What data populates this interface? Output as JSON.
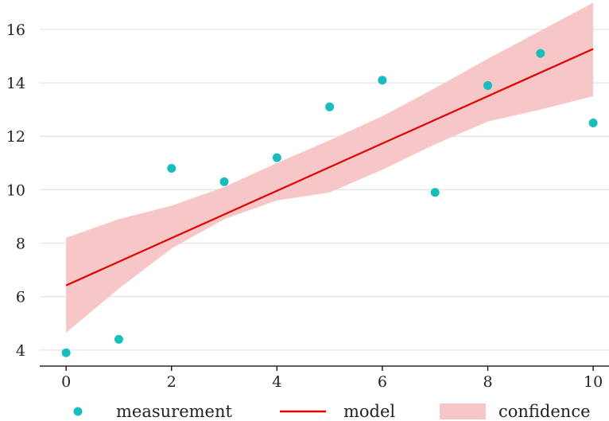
{
  "chart_data": {
    "type": "scatter",
    "title": "",
    "xlabel": "",
    "ylabel": "",
    "xlim": [
      -0.5,
      10.3
    ],
    "ylim": [
      3.4,
      17.1
    ],
    "x_ticks": [
      0,
      2,
      4,
      6,
      8,
      10
    ],
    "x_tick_labels": [
      "0",
      "2",
      "4",
      "6",
      "8",
      "10"
    ],
    "y_ticks": [
      4,
      6,
      8,
      10,
      12,
      14,
      16
    ],
    "y_tick_labels": [
      "4",
      "6",
      "8",
      "10",
      "12",
      "14",
      "16"
    ],
    "grid": "horizontal",
    "legend_position": "bottom",
    "series": [
      {
        "name": "measurement",
        "kind": "scatter",
        "color": "#17BEBB",
        "points": [
          {
            "x": 0,
            "y": 3.9
          },
          {
            "x": 1,
            "y": 4.4
          },
          {
            "x": 2,
            "y": 10.8
          },
          {
            "x": 3,
            "y": 10.3
          },
          {
            "x": 4,
            "y": 11.2
          },
          {
            "x": 5,
            "y": 13.1
          },
          {
            "x": 6,
            "y": 14.1
          },
          {
            "x": 7,
            "y": 9.9
          },
          {
            "x": 8,
            "y": 13.9
          },
          {
            "x": 9,
            "y": 15.1
          },
          {
            "x": 10,
            "y": 12.5
          }
        ]
      },
      {
        "name": "model",
        "kind": "line",
        "color": "#E00000",
        "x": [
          0,
          10
        ],
        "y": [
          6.42,
          15.27
        ]
      },
      {
        "name": "confidence",
        "kind": "band",
        "color": "#F7C6C7",
        "x": [
          0,
          1,
          2,
          3,
          4,
          5,
          6,
          7,
          8,
          9,
          10
        ],
        "lower": [
          4.65,
          6.3,
          7.8,
          8.9,
          9.6,
          9.9,
          10.75,
          11.7,
          12.55,
          13.0,
          13.5
        ],
        "upper": [
          8.2,
          8.9,
          9.4,
          10.1,
          11.0,
          11.85,
          12.75,
          13.8,
          14.9,
          15.95,
          17.0
        ]
      }
    ]
  }
}
